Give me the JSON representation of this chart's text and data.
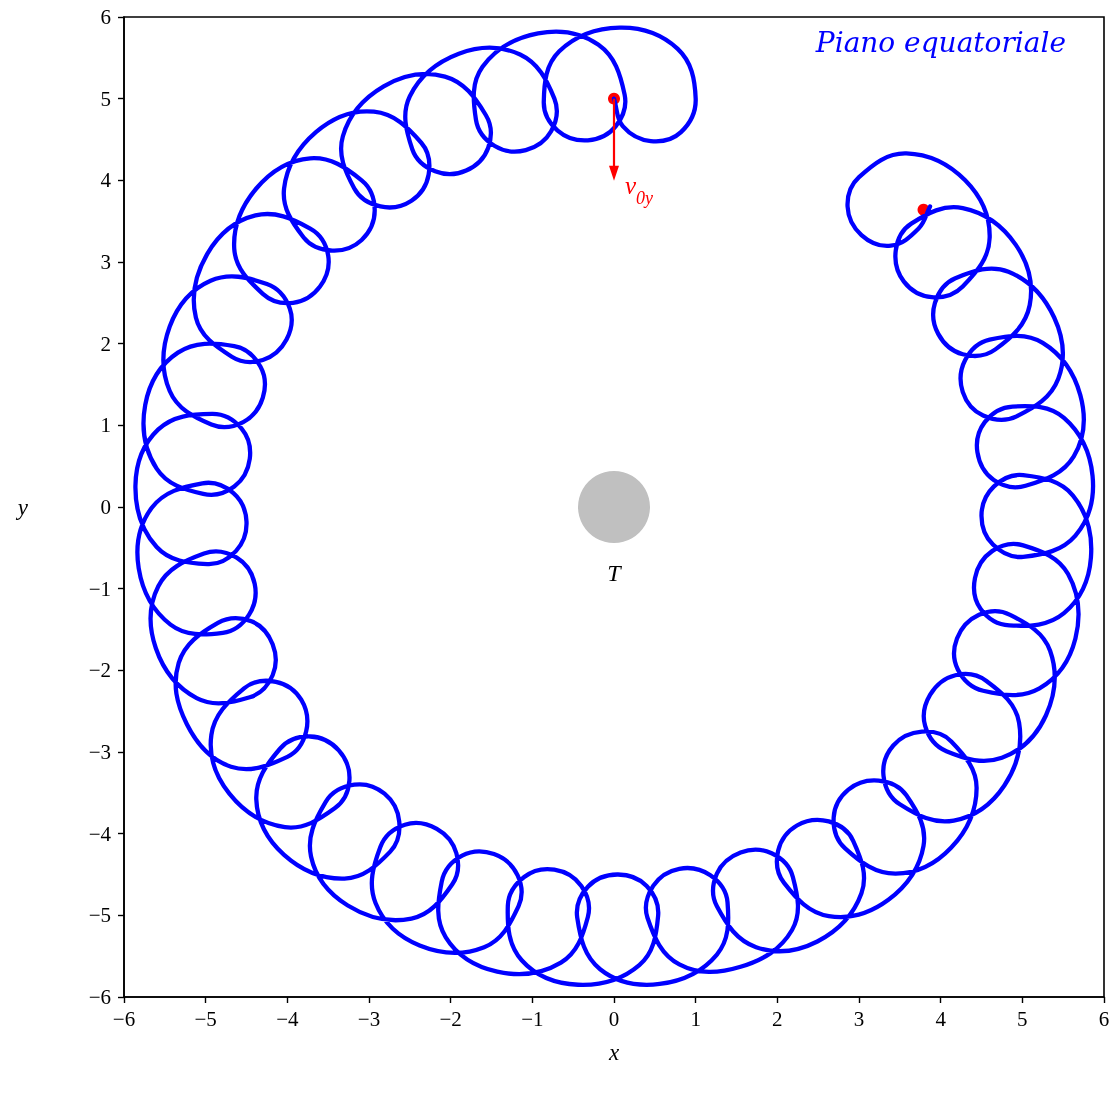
{
  "chart_data": {
    "type": "line",
    "title": "Piano equatoriale",
    "xlabel": "x",
    "ylabel": "y",
    "xlim": [
      -6,
      6
    ],
    "ylim": [
      -6,
      6
    ],
    "xticks": [
      {
        "value": -6,
        "label": "−6"
      },
      {
        "value": -5,
        "label": "−5"
      },
      {
        "value": -4,
        "label": "−4"
      },
      {
        "value": -3,
        "label": "−3"
      },
      {
        "value": -2,
        "label": "−2"
      },
      {
        "value": -1,
        "label": "−1"
      },
      0,
      1,
      2,
      3,
      4,
      5,
      6
    ],
    "yticks": [
      {
        "value": -6,
        "label": "−6"
      },
      {
        "value": -5,
        "label": "−5"
      },
      {
        "value": -4,
        "label": "−4"
      },
      {
        "value": -3,
        "label": "−3"
      },
      {
        "value": -2,
        "label": "−2"
      },
      {
        "value": -1,
        "label": "−1"
      },
      0,
      1,
      2,
      3,
      4,
      5,
      6
    ],
    "grid": false,
    "series": [
      {
        "color": "#0000ff",
        "marker": "none",
        "x": [
          0,
          0.11,
          0.45,
          0.82,
          1.0,
          0.78,
          0.07,
          -0.67,
          -0.86,
          -0.69,
          -0.32,
          0.02,
          0.13,
          -0.19,
          -0.93,
          -1.61,
          -1.69,
          -1.46,
          -1.08,
          -0.77,
          -0.73,
          -1.15,
          -1.9,
          -2.5,
          -2.47,
          -2.19,
          -1.81,
          -1.54,
          -1.57,
          -2.07,
          -2.82,
          -3.32,
          -3.18,
          -2.86,
          -2.48,
          -2.27,
          -2.36,
          -2.94,
          -3.65,
          -4.04,
          -3.8,
          -3.45,
          -3.09,
          -2.93,
          -3.09,
          -3.72,
          -4.38,
          -4.65,
          -4.3,
          -3.93,
          -3.6,
          -3.5,
          -3.72,
          -4.39,
          -4.98,
          -5.12,
          -4.68,
          -4.3,
          -4.01,
          -3.97,
          -4.25,
          -4.94,
          -5.44,
          -5.44,
          -4.93,
          -4.54,
          -4.3,
          -4.33,
          -4.65,
          -5.34,
          -5.74,
          -5.6,
          -5.03,
          -4.65,
          -4.46,
          -4.56,
          -4.92,
          -5.58,
          -5.86,
          -5.6,
          -4.98,
          -4.63,
          -4.5,
          -4.66,
          -5.04,
          -5.66,
          -5.82,
          -5.43,
          -4.79,
          -4.47,
          -4.4,
          -4.62,
          -5.02,
          -5.58,
          -5.61,
          -5.11,
          -4.46,
          -4.18,
          -4.18,
          -4.44,
          -4.85,
          -5.33,
          -5.23,
          -4.69,
          -4.0,
          -3.77,
          -3.83,
          -4.14,
          -4.53,
          -4.93,
          -4.71,
          -4.03,
          -3.42,
          -3.24,
          -3.37,
          -3.72,
          -4.09,
          -4.38,
          -4.04,
          -3.3,
          -2.74,
          -2.63,
          -2.81,
          -3.18,
          -3.53,
          -3.71,
          -3.26,
          -2.48,
          -1.98,
          -1.93,
          -2.17,
          -2.56,
          -2.86,
          -2.92,
          -2.38,
          -1.59,
          -1.17,
          -1.18,
          -1.47,
          -1.86,
          -2.11,
          -2.06,
          -1.43,
          -0.65,
          -0.32,
          -0.4,
          -0.73,
          -1.1,
          -1.3,
          -1.13,
          -0.44,
          0.31,
          0.54,
          0.4,
          0.04,
          -0.32,
          -0.45,
          -0.17,
          0.56,
          1.26,
          1.39,
          1.18,
          0.8,
          0.48,
          0.41,
          0.8,
          1.55,
          2.18,
          2.19,
          1.93,
          1.55,
          1.26,
          1.26,
          1.74,
          2.49,
          3.03,
          2.93,
          2.63,
          2.24,
          2.01,
          2.08,
          2.63,
          3.36,
          3.79,
          3.58,
          3.24,
          2.87,
          2.69,
          2.83,
          3.45,
          4.13,
          4.44,
          4.13,
          3.77,
          3.42,
          3.3,
          3.5,
          4.16,
          4.78,
          4.96,
          4.56,
          4.18,
          3.87,
          3.81,
          4.07,
          4.75,
          5.29,
          5.34,
          4.85,
          4.47,
          4.2,
          4.21,
          4.52,
          5.21,
          5.65,
          5.56,
          5.01,
          4.63,
          4.42,
          4.49,
          4.84,
          5.51,
          5.84,
          5.62,
          5.01,
          4.65,
          4.5,
          4.64,
          5.01,
          5.65,
          5.86,
          5.51,
          4.88,
          4.54,
          4.45,
          4.65,
          5.04,
          5.63,
          5.71,
          5.25,
          4.6,
          4.3,
          4.27,
          4.52,
          4.93,
          5.44,
          5.39,
          4.83,
          4.18,
          3.93,
          3.97,
          4.27,
          4.67,
          5.09,
          4.92,
          4.27,
          3.64,
          3.45,
          3.55,
          3.89,
          4.27,
          4.6,
          4.3,
          3.58,
          3.0,
          2.86,
          3.03,
          3.39,
          3.73,
          3.87
        ],
        "values": [
          5,
          4.66,
          4.48,
          4.59,
          5.0,
          5.61,
          5.87,
          5.58,
          4.96,
          4.61,
          4.49,
          4.66,
          5.05,
          5.66,
          5.8,
          5.39,
          4.74,
          4.42,
          4.37,
          4.6,
          5.0,
          5.54,
          5.55,
          5.03,
          4.38,
          4.11,
          4.12,
          4.4,
          4.8,
          5.27,
          5.15,
          4.54,
          3.9,
          3.68,
          3.75,
          4.07,
          4.46,
          4.84,
          4.59,
          3.9,
          3.3,
          3.14,
          3.27,
          3.63,
          4.0,
          4.27,
          3.9,
          3.16,
          2.61,
          2.5,
          2.7,
          3.08,
          3.41,
          3.57,
          3.1,
          2.32,
          1.84,
          1.8,
          2.05,
          2.43,
          2.73,
          2.77,
          2.21,
          1.42,
          1.01,
          1.04,
          1.34,
          1.72,
          1.97,
          1.89,
          1.25,
          0.47,
          0.16,
          0.25,
          0.59,
          0.96,
          1.14,
          0.95,
          0.26,
          -0.49,
          -0.7,
          -0.54,
          -0.18,
          0.17,
          0.29,
          -0.01,
          -0.75,
          -1.44,
          -1.54,
          -1.32,
          -0.94,
          -0.62,
          -0.57,
          -0.97,
          -1.73,
          -2.34,
          -2.33,
          -2.06,
          -1.68,
          -1.4,
          -1.42,
          -1.91,
          -2.66,
          -3.18,
          -3.06,
          -2.75,
          -2.36,
          -2.14,
          -2.22,
          -2.79,
          -3.51,
          -3.92,
          -3.69,
          -3.35,
          -2.98,
          -2.81,
          -2.96,
          -3.58,
          -4.26,
          -4.55,
          -4.22,
          -3.85,
          -3.51,
          -3.4,
          -3.61,
          -4.28,
          -4.88,
          -5.04,
          -4.62,
          -4.24,
          -3.94,
          -3.89,
          -4.16,
          -4.85,
          -5.37,
          -5.39,
          -4.89,
          -4.51,
          -4.25,
          -4.27,
          -4.59,
          -5.27,
          -5.69,
          -5.58,
          -5.02,
          -4.64,
          -4.44,
          -4.53,
          -4.88,
          -5.55,
          -5.85,
          -5.61,
          -5.01,
          -4.64,
          -4.5,
          -4.65,
          -5.03,
          -5.66,
          -5.84,
          -5.48,
          -4.84,
          -4.51,
          -4.43,
          -4.64,
          -5.03,
          -5.6,
          -5.63,
          -5.18,
          -4.53,
          -4.24,
          -4.23,
          -4.49,
          -4.89,
          -5.39,
          -5.32,
          -4.73,
          -4.09,
          -3.85,
          -3.9,
          -4.21,
          -4.6,
          -5.01,
          -4.81,
          -4.15,
          -3.53,
          -3.35,
          -3.46,
          -3.8,
          -4.18,
          -4.49,
          -4.17,
          -3.44,
          -2.87,
          -2.75,
          -2.92,
          -3.29,
          -3.64,
          -3.84,
          -3.41,
          -2.64,
          -2.13,
          -2.06,
          -2.3,
          -2.68,
          -2.99,
          -3.07,
          -2.55,
          -1.76,
          -1.32,
          -1.32,
          -1.61,
          -1.99,
          -2.25,
          -2.22,
          -1.61,
          -0.82,
          -0.47,
          -0.54,
          -0.87,
          -1.25,
          -1.45,
          -1.3,
          -0.62,
          0.14,
          0.39,
          0.25,
          -0.1,
          -0.46,
          -0.61,
          -0.35,
          0.38,
          1.09,
          1.23,
          1.04,
          0.67,
          0.33,
          0.26,
          0.62,
          1.37,
          2.01,
          2.05,
          1.8,
          1.41,
          1.12,
          1.11,
          1.57,
          2.32,
          2.88,
          2.8,
          2.5,
          2.12,
          1.87,
          1.93,
          2.47,
          3.21,
          3.66,
          3.47,
          3.14,
          2.76,
          2.57,
          2.7,
          3.3,
          4.0,
          4.33,
          4.04,
          3.68,
          3.33,
          3.2,
          3.41,
          3.68
        ]
      },
      {
        "type": "scatter",
        "color": "#ff0000",
        "marker": "circle",
        "x": [
          0,
          3.79
        ],
        "values": [
          5,
          3.64
        ]
      },
      {
        "type": "scatter",
        "color": "#c0c0c0",
        "marker": "circle",
        "x": [
          0
        ],
        "values": [
          0
        ]
      }
    ],
    "annotations": [
      {
        "text": "T",
        "x": 0,
        "y": 0
      },
      {
        "text": "v$_{0y}$",
        "x": 0,
        "y": 5
      }
    ]
  }
}
